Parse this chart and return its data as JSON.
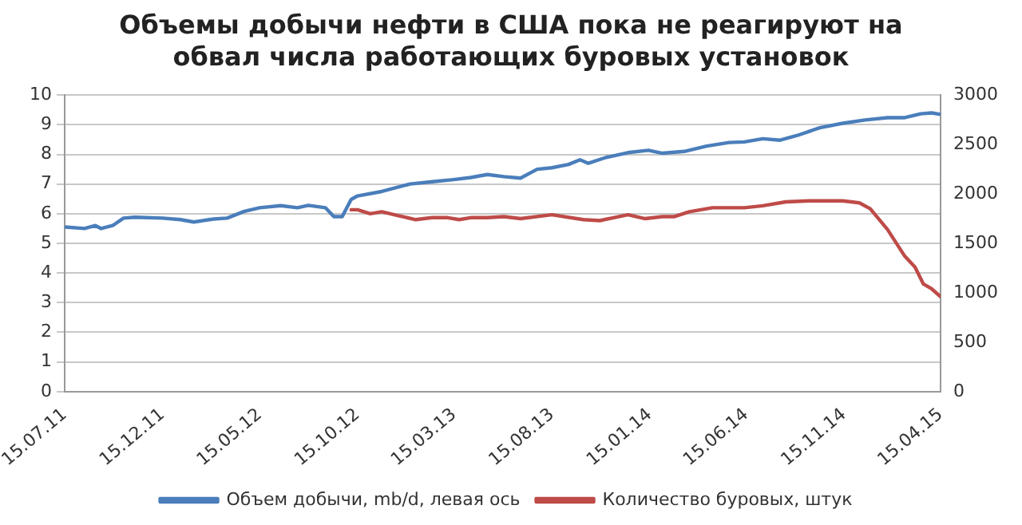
{
  "chart_data": {
    "type": "line",
    "title": "Объемы добычи нефти в США пока не реагируют на обвал числа работающих буровых установок",
    "xlim": [
      "2011-07-15",
      "2015-04-15"
    ],
    "xticks": [
      {
        "value": "2011-07-15",
        "label": "15.07.11"
      },
      {
        "value": "2011-12-15",
        "label": "15.12.11"
      },
      {
        "value": "2012-05-15",
        "label": "15.05.12"
      },
      {
        "value": "2012-10-15",
        "label": "15.10.12"
      },
      {
        "value": "2013-03-15",
        "label": "15.03.13"
      },
      {
        "value": "2013-08-15",
        "label": "15.08.13"
      },
      {
        "value": "2014-01-15",
        "label": "15.01.14"
      },
      {
        "value": "2014-06-15",
        "label": "15.06.14"
      },
      {
        "value": "2014-11-15",
        "label": "15.11.14"
      },
      {
        "value": "2015-04-15",
        "label": "15.04.15"
      }
    ],
    "ylim": [
      0,
      10
    ],
    "yticks": [
      0,
      1,
      2,
      3,
      4,
      5,
      6,
      7,
      8,
      9,
      10
    ],
    "y2lim": [
      0,
      3000
    ],
    "y2ticks": [
      0,
      500,
      1000,
      1500,
      2000,
      2500,
      3000
    ],
    "grid": "y",
    "legend": "bottom",
    "marker": "none",
    "line_style": "solid",
    "series": [
      {
        "name": "Объем добычи, mb/d, левая ось",
        "color": "#4a7ebb",
        "x": [
          "2011-07-15",
          "2011-08-15",
          "2011-09-01",
          "2011-09-10",
          "2011-09-28",
          "2011-10-15",
          "2011-11-02",
          "2011-12-15",
          "2012-01-12",
          "2012-02-02",
          "2012-03-04",
          "2012-03-25",
          "2012-04-21",
          "2012-05-15",
          "2012-06-17",
          "2012-07-13",
          "2012-07-30",
          "2012-08-26",
          "2012-09-08",
          "2012-09-21",
          "2012-10-05",
          "2012-10-15",
          "2012-11-22",
          "2013-01-05",
          "2013-02-09",
          "2013-03-14",
          "2013-04-10",
          "2013-05-06",
          "2013-06-01",
          "2013-06-27",
          "2013-07-23",
          "2013-08-15",
          "2013-09-10",
          "2013-09-28",
          "2013-10-11",
          "2013-11-08",
          "2013-12-12",
          "2014-01-13",
          "2014-02-04",
          "2014-03-10",
          "2014-04-14",
          "2014-05-19",
          "2014-06-12",
          "2014-07-11",
          "2014-08-07",
          "2014-09-03",
          "2014-10-08",
          "2014-11-13",
          "2014-12-18",
          "2015-01-22",
          "2015-02-18",
          "2015-03-15",
          "2015-04-01",
          "2015-04-15"
        ],
        "values": [
          5.55,
          5.5,
          5.6,
          5.5,
          5.6,
          5.85,
          5.88,
          5.85,
          5.8,
          5.72,
          5.82,
          5.85,
          6.08,
          6.2,
          6.27,
          6.2,
          6.28,
          6.2,
          5.9,
          5.9,
          6.48,
          6.6,
          6.75,
          7.0,
          7.08,
          7.15,
          7.22,
          7.32,
          7.25,
          7.2,
          7.5,
          7.55,
          7.66,
          7.82,
          7.7,
          7.9,
          8.06,
          8.14,
          8.04,
          8.1,
          8.28,
          8.4,
          8.42,
          8.53,
          8.48,
          8.64,
          8.9,
          9.05,
          9.16,
          9.24,
          9.24,
          9.37,
          9.4,
          9.35
        ]
      },
      {
        "name": "Количество буровых, штук",
        "color": "#be4b48",
        "axis": "y2",
        "x": [
          "2012-10-05",
          "2012-10-15",
          "2012-11-04",
          "2012-11-22",
          "2012-12-18",
          "2013-01-14",
          "2013-02-09",
          "2013-03-05",
          "2013-03-23",
          "2013-04-10",
          "2013-05-06",
          "2013-06-01",
          "2013-06-27",
          "2013-08-15",
          "2013-10-03",
          "2013-10-29",
          "2013-12-12",
          "2014-01-08",
          "2014-02-04",
          "2014-02-22",
          "2014-03-18",
          "2014-04-23",
          "2014-06-12",
          "2014-07-11",
          "2014-08-16",
          "2014-09-21",
          "2014-11-13",
          "2014-12-09",
          "2014-12-26",
          "2015-01-22",
          "2015-02-18",
          "2015-03-06",
          "2015-03-19",
          "2015-04-01",
          "2015-04-15"
        ],
        "values": [
          1840,
          1840,
          1800,
          1820,
          1780,
          1740,
          1760,
          1760,
          1740,
          1760,
          1760,
          1770,
          1750,
          1790,
          1740,
          1730,
          1790,
          1750,
          1770,
          1770,
          1820,
          1860,
          1860,
          1880,
          1920,
          1930,
          1930,
          1910,
          1850,
          1640,
          1370,
          1260,
          1090,
          1040,
          960
        ]
      }
    ]
  }
}
